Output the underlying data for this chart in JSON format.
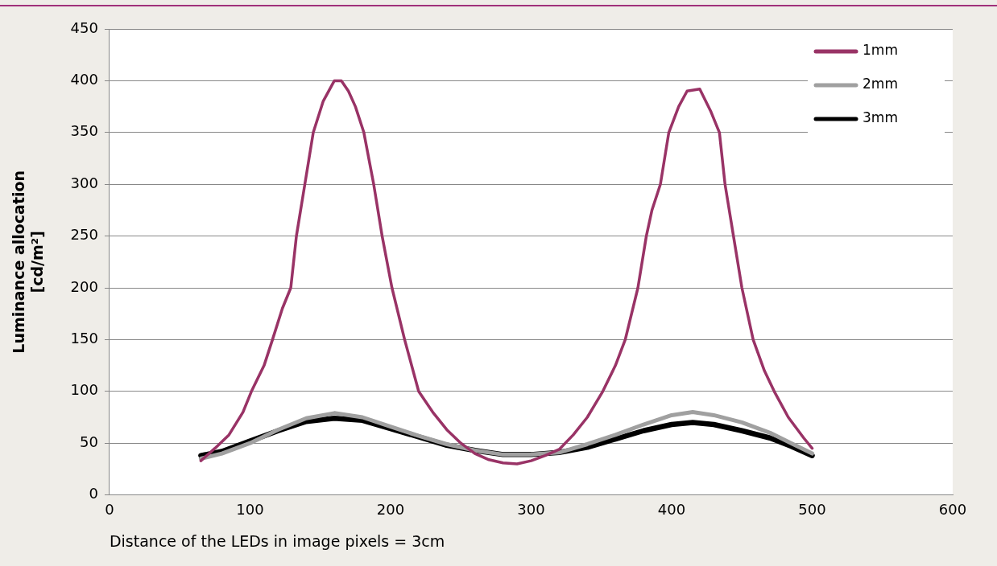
{
  "chart_data": {
    "type": "line",
    "xlabel": "Distance of the LEDs in image pixels = 3cm",
    "ylabel": "Luminance allocation\n[cd/m²]",
    "xlim": [
      0,
      600
    ],
    "xticks": [
      0,
      100,
      200,
      300,
      400,
      500,
      600
    ],
    "ylim": [
      0,
      450
    ],
    "yticks": [
      0,
      50,
      100,
      150,
      200,
      250,
      300,
      350,
      400,
      450
    ],
    "grid": "y",
    "legend": "top right",
    "marker": "none",
    "line_style": "solid",
    "series": [
      {
        "name": "1mm",
        "color": "#993366",
        "x": [
          65,
          75,
          85,
          95,
          101,
          110,
          116,
          123,
          129,
          133,
          136,
          139,
          145,
          152,
          160,
          165,
          170,
          175,
          181,
          188,
          194,
          201,
          210,
          220,
          230,
          240,
          250,
          260,
          270,
          280,
          290,
          300,
          310,
          320,
          330,
          340,
          351,
          360,
          367,
          376,
          382,
          386,
          392,
          398,
          405,
          411,
          420,
          428,
          434,
          438,
          444,
          450,
          458,
          466,
          473,
          483,
          494,
          500
        ],
        "values": [
          33,
          45,
          58,
          80,
          100,
          125,
          150,
          180,
          200,
          250,
          275,
          300,
          350,
          380,
          400,
          400,
          390,
          375,
          350,
          300,
          250,
          200,
          150,
          100,
          80,
          63,
          50,
          40,
          34,
          31,
          30,
          33,
          38,
          44,
          58,
          75,
          100,
          125,
          150,
          200,
          250,
          275,
          300,
          350,
          375,
          390,
          392,
          370,
          350,
          300,
          250,
          200,
          150,
          120,
          100,
          75,
          55,
          45
        ]
      },
      {
        "name": "2mm",
        "color": "#a0a0a0",
        "x": [
          65,
          80,
          100,
          120,
          140,
          160,
          180,
          200,
          220,
          240,
          260,
          280,
          300,
          320,
          340,
          360,
          380,
          400,
          415,
          430,
          450,
          470,
          485,
          500
        ],
        "values": [
          35,
          40,
          50,
          63,
          74,
          79,
          75,
          66,
          57,
          49,
          43,
          39,
          39,
          41,
          49,
          58,
          68,
          77,
          80,
          77,
          70,
          60,
          50,
          40
        ]
      },
      {
        "name": "3mm",
        "color": "#000000",
        "x": [
          65,
          80,
          100,
          120,
          140,
          160,
          180,
          200,
          220,
          240,
          260,
          280,
          300,
          320,
          340,
          360,
          380,
          400,
          415,
          430,
          450,
          470,
          485,
          500
        ],
        "values": [
          38,
          42,
          52,
          62,
          71,
          74,
          72,
          64,
          56,
          48,
          43,
          39,
          39,
          41,
          46,
          54,
          62,
          68,
          70,
          68,
          62,
          55,
          47,
          38
        ]
      }
    ]
  }
}
